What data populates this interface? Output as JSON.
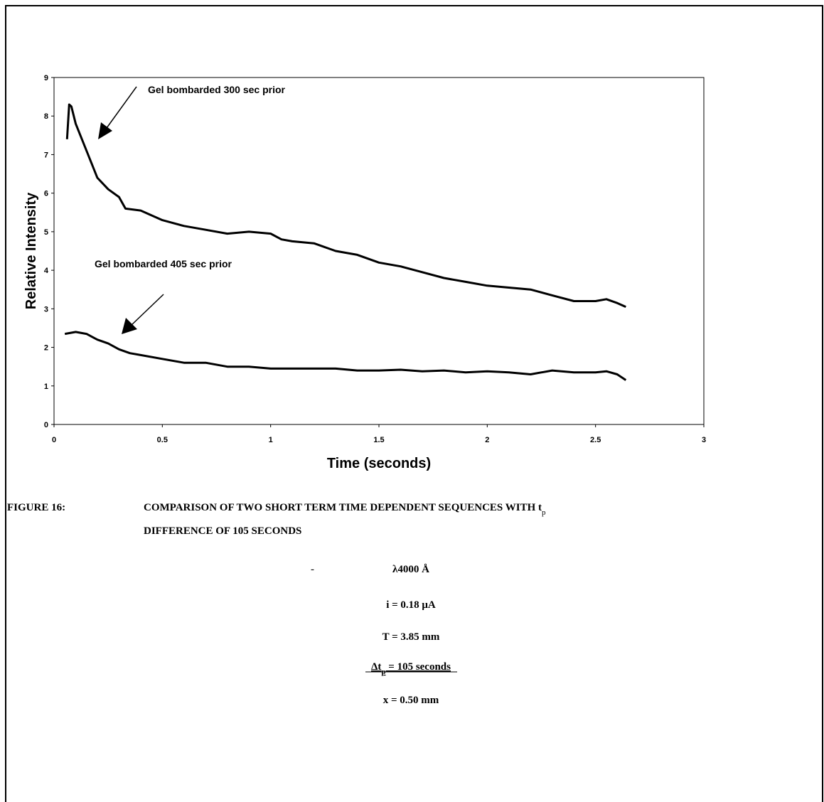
{
  "chart_data": {
    "type": "line",
    "xlabel": "Time (seconds)",
    "ylabel": "Relative Intensity",
    "xlim": [
      0,
      3
    ],
    "xticks": [
      0,
      0.5,
      1,
      1.5,
      2,
      2.5,
      3
    ],
    "ylim": [
      0,
      9
    ],
    "yticks": [
      0,
      1,
      2,
      3,
      4,
      5,
      6,
      7,
      8,
      9
    ],
    "grid": false,
    "series": [
      {
        "name": "Gel bombarded 300 sec prior",
        "color": "#000000",
        "x": [
          0.06,
          0.07,
          0.08,
          0.1,
          0.15,
          0.2,
          0.25,
          0.3,
          0.33,
          0.4,
          0.5,
          0.6,
          0.7,
          0.8,
          0.9,
          1.0,
          1.05,
          1.1,
          1.2,
          1.3,
          1.4,
          1.5,
          1.6,
          1.7,
          1.8,
          1.9,
          2.0,
          2.1,
          2.2,
          2.3,
          2.4,
          2.5,
          2.55,
          2.6,
          2.64
        ],
        "values": [
          7.4,
          8.3,
          8.25,
          7.8,
          7.1,
          6.4,
          6.1,
          5.9,
          5.6,
          5.55,
          5.3,
          5.15,
          5.05,
          4.95,
          5.0,
          4.95,
          4.8,
          4.75,
          4.7,
          4.5,
          4.4,
          4.2,
          4.1,
          3.95,
          3.8,
          3.7,
          3.6,
          3.55,
          3.5,
          3.35,
          3.2,
          3.2,
          3.25,
          3.15,
          3.05
        ]
      },
      {
        "name": "Gel bombarded 405 sec prior",
        "color": "#000000",
        "x": [
          0.05,
          0.1,
          0.15,
          0.2,
          0.25,
          0.3,
          0.35,
          0.4,
          0.5,
          0.6,
          0.7,
          0.8,
          0.9,
          1.0,
          1.1,
          1.2,
          1.3,
          1.4,
          1.5,
          1.6,
          1.7,
          1.8,
          1.9,
          2.0,
          2.1,
          2.2,
          2.3,
          2.4,
          2.5,
          2.55,
          2.6,
          2.64
        ],
        "values": [
          2.35,
          2.4,
          2.35,
          2.2,
          2.1,
          1.95,
          1.85,
          1.8,
          1.7,
          1.6,
          1.6,
          1.5,
          1.5,
          1.45,
          1.45,
          1.45,
          1.45,
          1.4,
          1.4,
          1.42,
          1.38,
          1.4,
          1.35,
          1.38,
          1.35,
          1.3,
          1.4,
          1.35,
          1.35,
          1.38,
          1.3,
          1.15
        ]
      }
    ]
  },
  "caption": {
    "label": "FIGURE 16:",
    "line1": [
      "COMPARISON OF TWO SHORT TERM TIME DEPENDENT SEQUENCES WITH t",
      "p"
    ],
    "line2": "DIFFERENCE OF 105 SECONDS",
    "dash": "-",
    "wavelength": "λ4000 Å",
    "current": "i = 0.18 μA",
    "thickness": "T = 3.85 mm",
    "delta": [
      "Δt",
      "p",
      " = 105 seconds"
    ],
    "position": "x = 0.50 mm"
  }
}
